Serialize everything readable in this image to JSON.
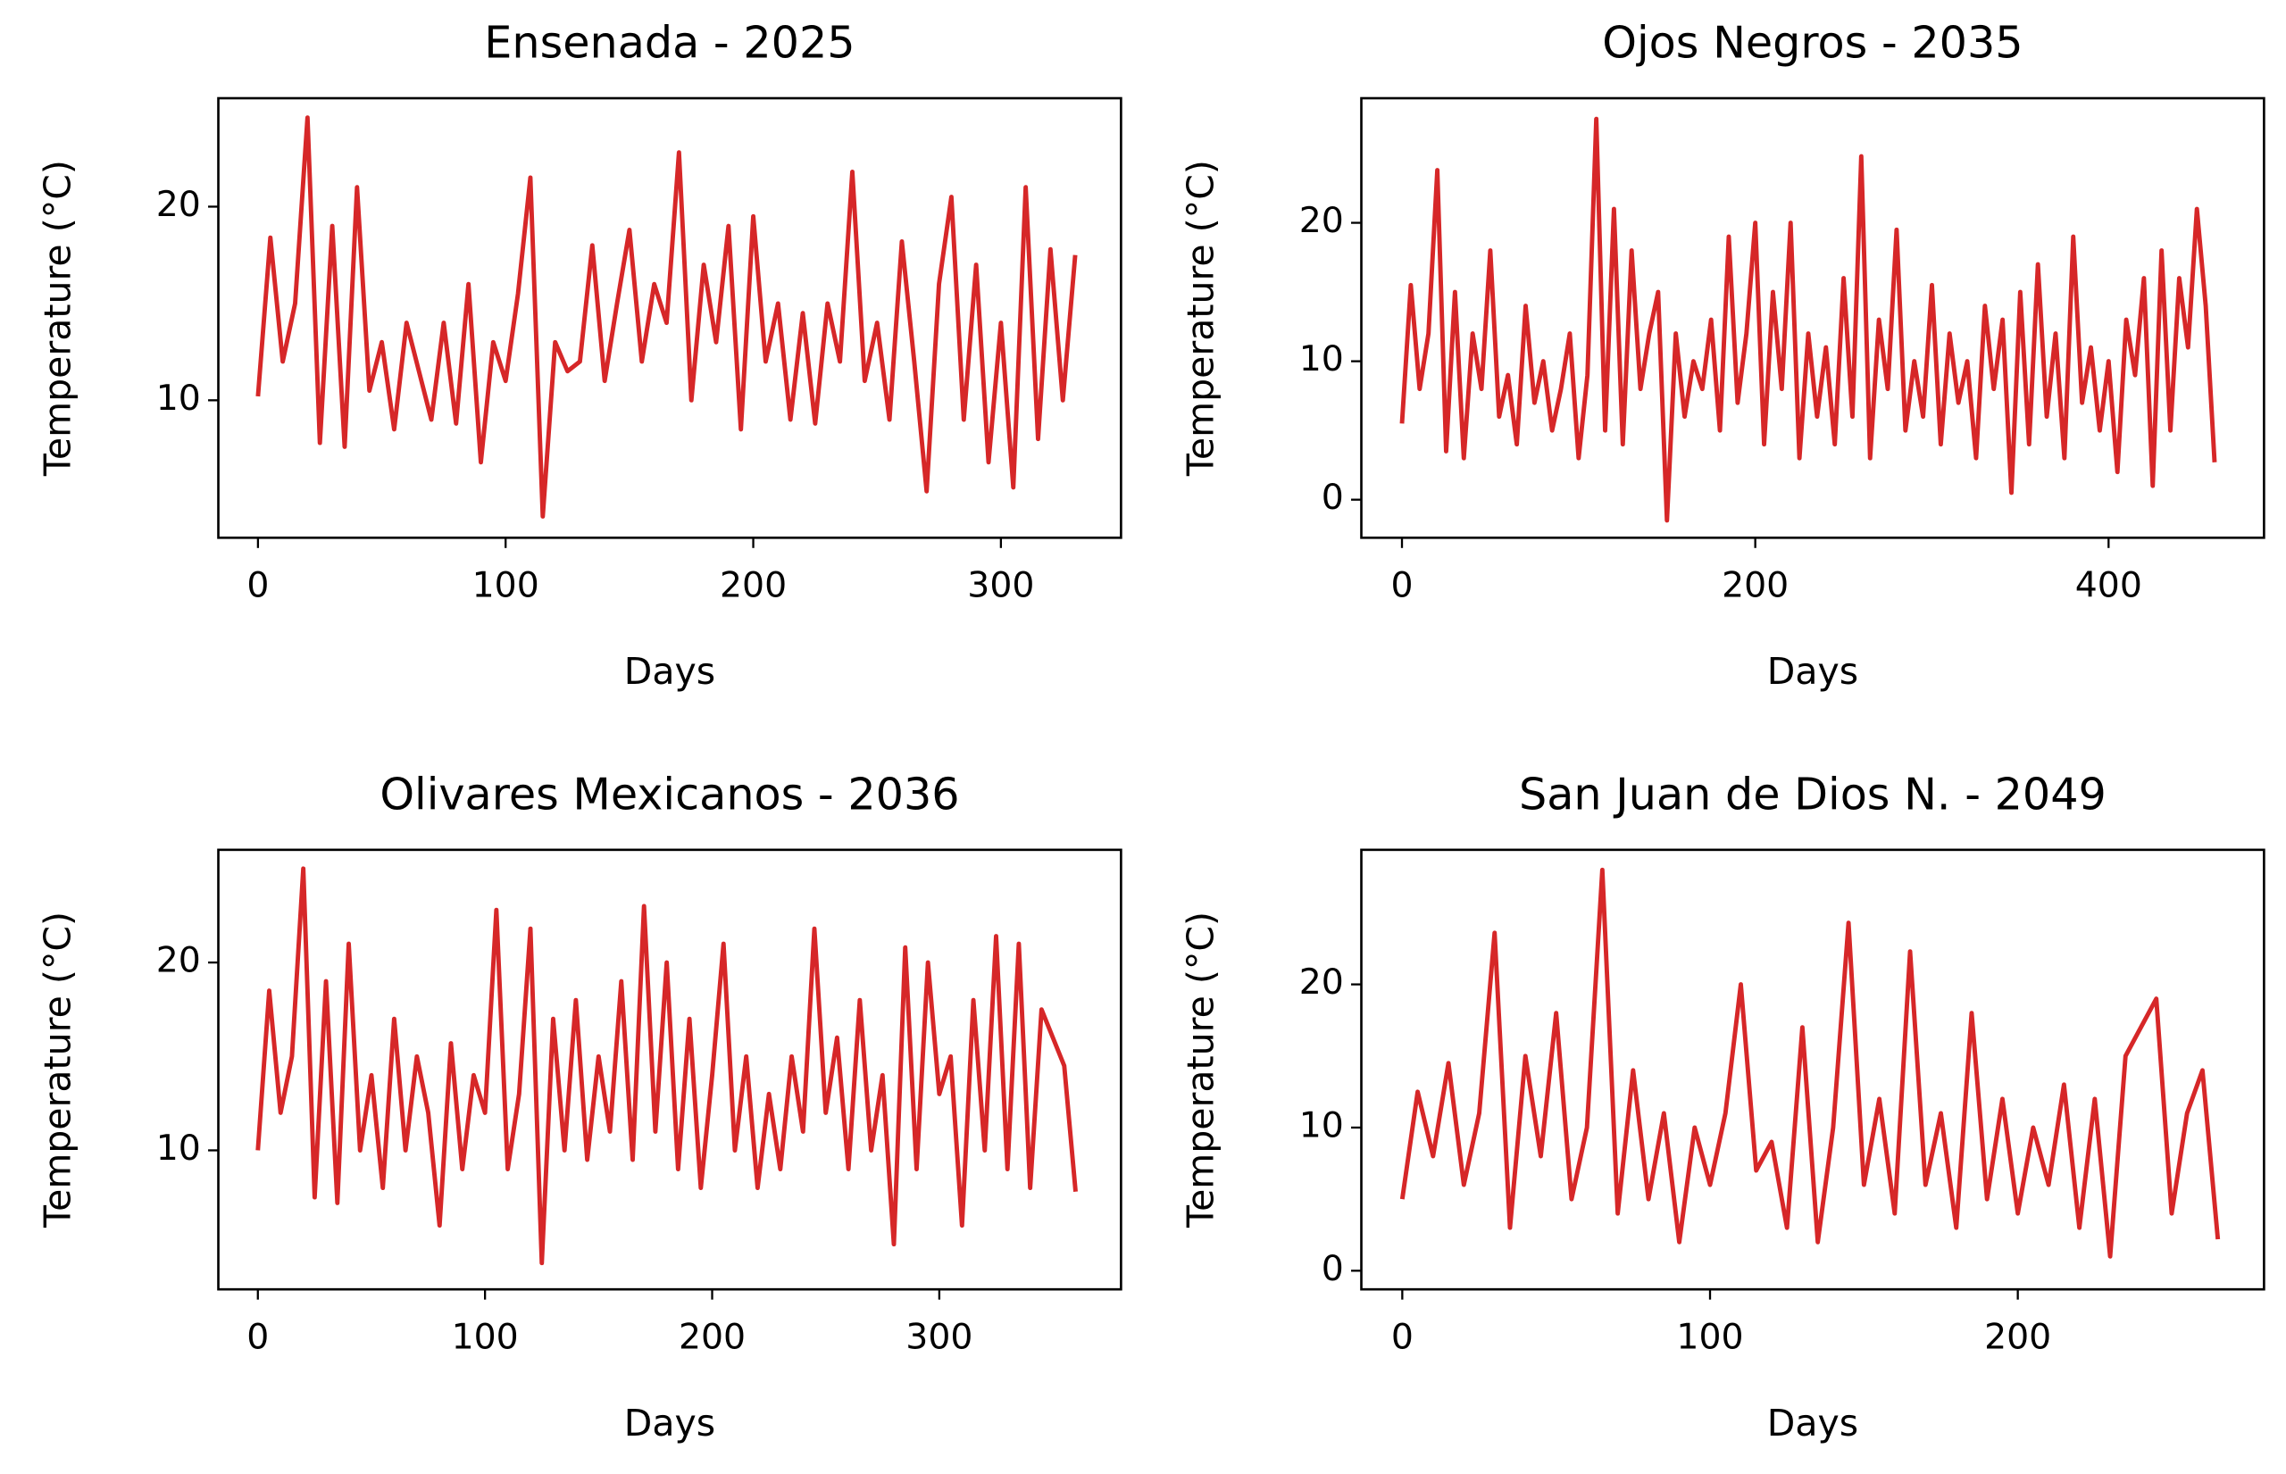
{
  "chart_data": [
    {
      "type": "line",
      "title": "Ensenada - 2025",
      "xlabel": "Days",
      "ylabel": "Temperature (°C)",
      "x": [
        0,
        5,
        10,
        15,
        20,
        25,
        30,
        35,
        40,
        45,
        50,
        55,
        60,
        65,
        70,
        75,
        80,
        85,
        90,
        95,
        100,
        105,
        110,
        115,
        120,
        125,
        130,
        135,
        140,
        145,
        150,
        155,
        160,
        165,
        170,
        175,
        180,
        185,
        190,
        195,
        200,
        205,
        210,
        215,
        220,
        225,
        230,
        235,
        240,
        245,
        250,
        255,
        260,
        265,
        270,
        275,
        280,
        285,
        290,
        295,
        300,
        305,
        310,
        315,
        320,
        325,
        330
      ],
      "series": [
        {
          "name": "Temperature",
          "color": "#d62728",
          "values": [
            10.2,
            18.4,
            12,
            15,
            24.6,
            7.8,
            19,
            7.6,
            21,
            10.5,
            13,
            8.5,
            14,
            11.5,
            9,
            14,
            8.8,
            16,
            6.8,
            13,
            11,
            15.5,
            21.5,
            4,
            13,
            11.5,
            12,
            18,
            11,
            15,
            18.8,
            12,
            16,
            14,
            22.8,
            10,
            17,
            13,
            19,
            8.5,
            19.5,
            12,
            15,
            9,
            14.5,
            8.8,
            15,
            12,
            21.8,
            11,
            14,
            9,
            18.2,
            12,
            5.3,
            16,
            20.5,
            9,
            17,
            6.8,
            14,
            5.5,
            21,
            8,
            17.8,
            10,
            17.5
          ]
        }
      ],
      "xlim": [
        -16,
        348.5
      ],
      "xticks": [
        0,
        100,
        200,
        300
      ],
      "ylim": [
        2.9,
        25.6
      ],
      "yticks": [
        10,
        20
      ]
    },
    {
      "type": "line",
      "title": "Ojos Negros - 2035",
      "xlabel": "Days",
      "ylabel": "Temperature (°C)",
      "x": [
        0,
        5,
        10,
        15,
        20,
        25,
        30,
        35,
        40,
        45,
        50,
        55,
        60,
        65,
        70,
        75,
        80,
        85,
        90,
        95,
        100,
        105,
        110,
        115,
        120,
        125,
        130,
        135,
        140,
        145,
        150,
        155,
        160,
        165,
        170,
        175,
        180,
        185,
        190,
        195,
        200,
        205,
        210,
        215,
        220,
        225,
        230,
        235,
        240,
        245,
        250,
        255,
        260,
        265,
        270,
        275,
        280,
        285,
        290,
        295,
        300,
        305,
        310,
        315,
        320,
        325,
        330,
        335,
        340,
        345,
        350,
        355,
        360,
        365,
        370,
        375,
        380,
        385,
        390,
        395,
        400,
        405,
        410,
        415,
        420,
        425,
        430,
        435,
        440,
        445,
        450,
        455,
        460
      ],
      "series": [
        {
          "name": "Temperature",
          "color": "#d62728",
          "values": [
            5.5,
            15.5,
            8,
            12,
            23.8,
            3.5,
            15,
            3,
            12,
            8,
            18,
            6,
            9,
            4,
            14,
            7,
            10,
            5,
            8,
            12,
            3,
            9,
            27.5,
            5,
            21,
            4,
            18,
            8,
            12,
            15,
            -1.5,
            12,
            6,
            10,
            8,
            13,
            5,
            19,
            7,
            12,
            20,
            4,
            15,
            8,
            20,
            3,
            12,
            6,
            11,
            4,
            16,
            6,
            24.8,
            3,
            13,
            8,
            19.5,
            5,
            10,
            6,
            15.5,
            4,
            12,
            7,
            10,
            3,
            14,
            8,
            13,
            0.5,
            15,
            4,
            17,
            6,
            12,
            3,
            19,
            7,
            11,
            5,
            10,
            2,
            13,
            9,
            16,
            1,
            18,
            5,
            16,
            11,
            21,
            14,
            2.7
          ]
        }
      ],
      "xlim": [
        -23,
        488
      ],
      "xticks": [
        0,
        200,
        400
      ],
      "ylim": [
        -2.75,
        29
      ],
      "yticks": [
        0,
        10,
        20
      ]
    },
    {
      "type": "line",
      "title": "Olivares Mexicanos - 2036",
      "xlabel": "Days",
      "ylabel": "Temperature (°C)",
      "x": [
        0,
        5,
        10,
        15,
        20,
        25,
        30,
        35,
        40,
        45,
        50,
        55,
        60,
        65,
        70,
        75,
        80,
        85,
        90,
        95,
        100,
        105,
        110,
        115,
        120,
        125,
        130,
        135,
        140,
        145,
        150,
        155,
        160,
        165,
        170,
        175,
        180,
        185,
        190,
        195,
        200,
        205,
        210,
        215,
        220,
        225,
        230,
        235,
        240,
        245,
        250,
        255,
        260,
        265,
        270,
        275,
        280,
        285,
        290,
        295,
        300,
        305,
        310,
        315,
        320,
        325,
        330,
        335,
        340,
        345,
        350,
        355,
        360
      ],
      "series": [
        {
          "name": "Temperature",
          "color": "#d62728",
          "values": [
            10,
            18.5,
            12,
            15,
            25,
            7.5,
            19,
            7.2,
            21,
            10,
            14,
            8,
            17,
            10,
            15,
            12,
            6,
            15.7,
            9,
            14,
            12,
            22.8,
            9,
            13,
            21.8,
            4,
            17,
            10,
            18,
            9.5,
            15,
            11,
            19,
            9.5,
            23,
            11,
            20,
            9,
            17,
            8,
            14,
            21,
            10,
            15,
            8,
            13,
            9,
            15,
            11,
            21.8,
            12,
            16,
            9,
            18,
            10,
            14,
            5,
            20.8,
            9,
            20,
            13,
            15,
            6,
            18,
            10,
            21.4,
            9,
            21,
            8,
            17.5,
            16,
            14.5,
            7.8
          ]
        }
      ],
      "xlim": [
        -17.4,
        380
      ],
      "xticks": [
        0,
        100,
        200,
        300
      ],
      "ylim": [
        2.6,
        26
      ],
      "yticks": [
        10,
        20
      ]
    },
    {
      "type": "line",
      "title": "San Juan de Dios N. - 2049",
      "xlabel": "Days",
      "ylabel": "Temperature (°C)",
      "x": [
        0,
        5,
        10,
        15,
        20,
        25,
        30,
        35,
        40,
        45,
        50,
        55,
        60,
        65,
        70,
        75,
        80,
        85,
        90,
        95,
        100,
        105,
        110,
        115,
        120,
        125,
        130,
        135,
        140,
        145,
        150,
        155,
        160,
        165,
        170,
        175,
        180,
        185,
        190,
        195,
        200,
        205,
        210,
        215,
        220,
        225,
        230,
        235,
        240,
        245,
        250,
        255,
        260,
        265
      ],
      "series": [
        {
          "name": "Temperature",
          "color": "#d62728",
          "values": [
            5,
            12.5,
            8,
            14.5,
            6,
            11,
            23.6,
            3,
            15,
            8,
            18,
            5,
            10,
            28,
            4,
            14,
            5,
            11,
            2,
            10,
            6,
            11,
            20,
            7,
            9,
            3,
            17,
            2,
            10,
            24.3,
            6,
            12,
            4,
            22.3,
            6,
            11,
            3,
            18,
            5,
            12,
            4,
            10,
            6,
            13,
            3,
            12,
            1,
            15,
            17,
            19,
            4,
            11,
            14,
            2.2
          ]
        }
      ],
      "xlim": [
        -13.3,
        280
      ],
      "xticks": [
        0,
        100,
        200
      ],
      "ylim": [
        -1.3,
        29.4
      ],
      "yticks": [
        0,
        10,
        20
      ]
    }
  ]
}
